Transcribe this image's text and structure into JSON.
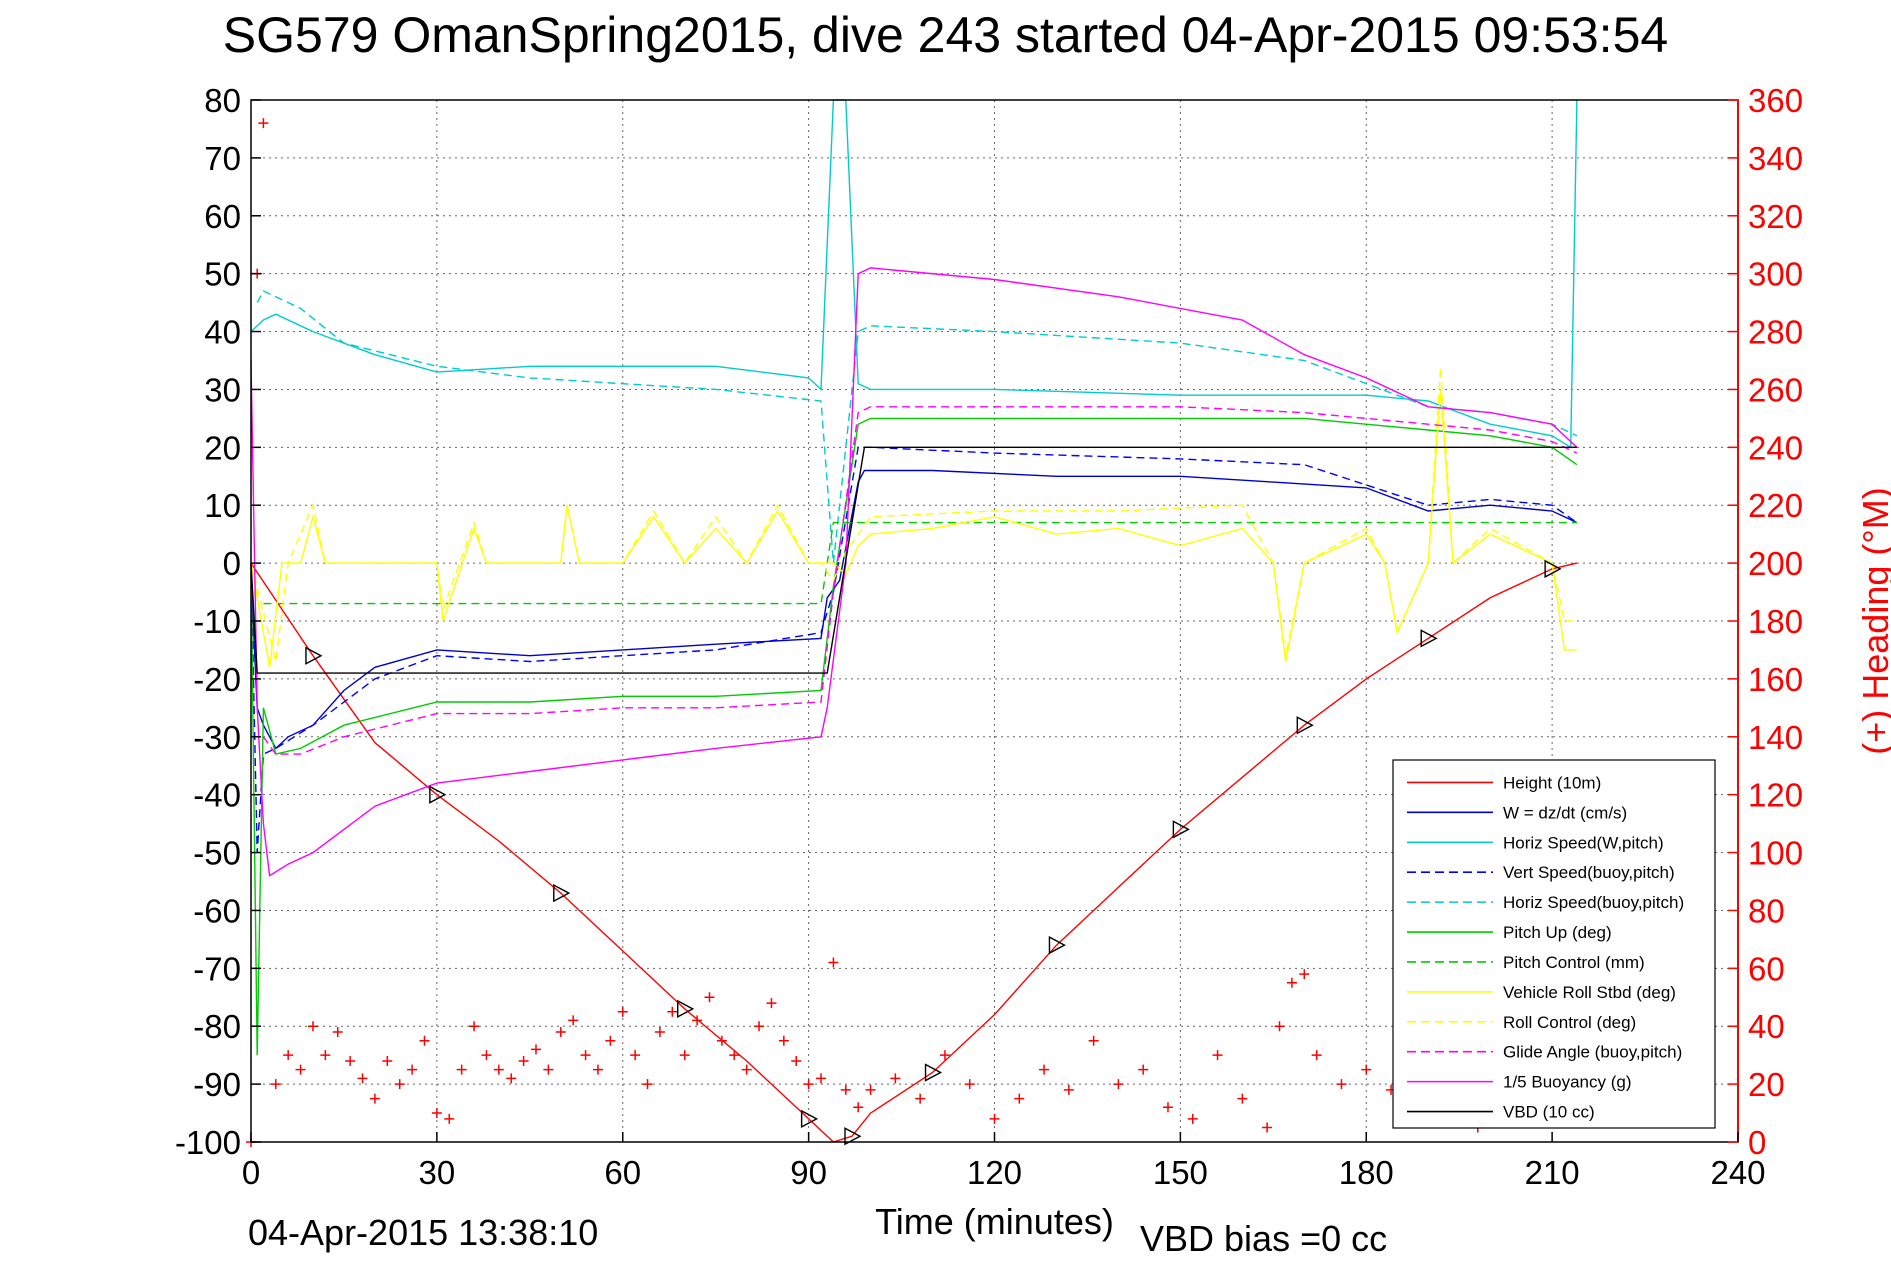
{
  "title": "SG579 OmanSpring2015, dive 243 started 04-Apr-2015 09:53:54",
  "footer_left": "04-Apr-2015 13:38:10",
  "footer_right": "VBD bias =0 cc",
  "chart_data": {
    "type": "line",
    "title": "SG579 OmanSpring2015, dive 243 started 04-Apr-2015 09:53:54",
    "xlabel": "Time (minutes)",
    "ylabel": "",
    "y2label": "(+) Heading (°M)",
    "xlim": [
      0,
      240
    ],
    "ylim": [
      -100,
      80
    ],
    "y2lim": [
      0,
      360
    ],
    "xticks": [
      0,
      30,
      60,
      90,
      120,
      150,
      180,
      210,
      240
    ],
    "yticks": [
      80,
      70,
      60,
      50,
      40,
      30,
      20,
      10,
      0,
      -10,
      -20,
      -30,
      -40,
      -50,
      -60,
      -70,
      -80,
      -90,
      -100
    ],
    "y2ticks": [
      360,
      340,
      320,
      300,
      280,
      260,
      240,
      220,
      200,
      180,
      160,
      140,
      120,
      100,
      80,
      60,
      40,
      20,
      0
    ],
    "grid": true,
    "legend_position": "bottom-right",
    "series": [
      {
        "name": "Height (10m)",
        "color": "#ff0000",
        "style": "solid",
        "x": [
          0,
          10,
          20,
          30,
          40,
          50,
          60,
          70,
          80,
          90,
          94,
          97,
          100,
          110,
          120,
          130,
          140,
          150,
          160,
          170,
          180,
          190,
          200,
          210,
          214
        ],
        "y": [
          0,
          -16,
          -31,
          -40,
          -48,
          -57,
          -67,
          -77,
          -86,
          -96,
          -100,
          -99,
          -95,
          -88,
          -78,
          -66,
          -56,
          -46,
          -37,
          -28,
          -20,
          -13,
          -6,
          -1,
          0
        ]
      },
      {
        "name": "W = dz/dt (cm/s)",
        "color": "#0000cc",
        "style": "solid",
        "x": [
          0,
          1,
          2,
          4,
          6,
          10,
          15,
          20,
          30,
          45,
          60,
          75,
          92,
          93,
          95,
          98,
          99,
          110,
          130,
          150,
          165,
          180,
          190,
          200,
          210,
          214
        ],
        "y": [
          -2,
          -25,
          -28,
          -32,
          -30,
          -28,
          -22,
          -18,
          -15,
          -16,
          -15,
          -14,
          -13,
          -6,
          -3,
          14,
          16,
          16,
          15,
          15,
          14,
          13,
          9,
          10,
          9,
          7
        ]
      },
      {
        "name": "Horiz Speed(W,pitch)",
        "color": "#00cccc",
        "style": "solid",
        "x": [
          0,
          2,
          4,
          10,
          20,
          30,
          45,
          60,
          75,
          90,
          92,
          94,
          96,
          98,
          100,
          120,
          150,
          180,
          190,
          200,
          210,
          213,
          214
        ],
        "y": [
          40,
          42,
          43,
          40,
          36,
          33,
          34,
          34,
          34,
          32,
          30,
          80,
          80,
          31,
          30,
          30,
          29,
          29,
          28,
          24,
          22,
          20,
          80
        ]
      },
      {
        "name": "Vert Speed(buoy,pitch)",
        "color": "#0000ff",
        "style": "dashed",
        "x": [
          0,
          1,
          2,
          4,
          10,
          20,
          30,
          45,
          60,
          75,
          92,
          94,
          98,
          100,
          120,
          150,
          170,
          190,
          200,
          210,
          214
        ],
        "y": [
          0,
          -50,
          -33,
          -32,
          -28,
          -20,
          -16,
          -17,
          -16,
          -15,
          -12,
          -5,
          20,
          20,
          19,
          18,
          17,
          10,
          11,
          10,
          7
        ]
      },
      {
        "name": "Horiz Speed(buoy,pitch)",
        "color": "#00cccc",
        "style": "dashed",
        "x": [
          1,
          2,
          8,
          15,
          30,
          45,
          60,
          75,
          92,
          94,
          98,
          100,
          120,
          150,
          170,
          190,
          200,
          210,
          214
        ],
        "y": [
          45,
          47,
          44,
          38,
          34,
          32,
          31,
          30,
          28,
          0,
          40,
          41,
          40,
          38,
          35,
          27,
          26,
          24,
          22
        ]
      },
      {
        "name": "Pitch Up (deg)",
        "color": "#00cc00",
        "style": "solid",
        "x": [
          0,
          1,
          2,
          4,
          8,
          15,
          30,
          45,
          60,
          75,
          92,
          94,
          98,
          100,
          120,
          150,
          170,
          190,
          200,
          210,
          214
        ],
        "y": [
          0,
          -85,
          -25,
          -33,
          -32,
          -28,
          -24,
          -24,
          -23,
          -23,
          -22,
          -4,
          24,
          25,
          25,
          25,
          25,
          23,
          22,
          20,
          17
        ]
      },
      {
        "name": "Pitch Control (mm)",
        "color": "#00cc00",
        "style": "dashed",
        "x": [
          2,
          92,
          94,
          214
        ],
        "y": [
          -7,
          -7,
          7,
          7
        ]
      },
      {
        "name": "Vehicle Roll Stbd (deg)",
        "color": "#ffff00",
        "style": "solid",
        "x": [
          0,
          3,
          5,
          8,
          10,
          12,
          14,
          30,
          31,
          36,
          38,
          50,
          51,
          53,
          60,
          65,
          70,
          75,
          80,
          85,
          90,
          92,
          94,
          96,
          98,
          100,
          110,
          120,
          130,
          140,
          150,
          160,
          165,
          167,
          170,
          180,
          183,
          185,
          190,
          192,
          194,
          200,
          210,
          212,
          214
        ],
        "y": [
          0,
          -18,
          0,
          0,
          8,
          0,
          0,
          0,
          -10,
          6,
          0,
          0,
          10,
          0,
          0,
          8,
          0,
          6,
          0,
          9,
          0,
          0,
          0,
          -2,
          3,
          5,
          6,
          8,
          5,
          6,
          3,
          6,
          0,
          -17,
          0,
          5,
          0,
          -12,
          0,
          30,
          0,
          5,
          0,
          -15,
          -15
        ]
      },
      {
        "name": "Roll Control (deg)",
        "color": "#ffff00",
        "style": "dashed",
        "x": [
          0,
          4,
          6,
          10,
          12,
          30,
          31,
          36,
          38,
          50,
          51,
          53,
          60,
          65,
          70,
          75,
          80,
          85,
          90,
          92,
          94,
          96,
          98,
          100,
          120,
          140,
          160,
          165,
          167,
          170,
          180,
          183,
          185,
          190,
          192,
          194,
          200,
          210,
          212,
          214
        ],
        "y": [
          0,
          -17,
          0,
          10,
          0,
          0,
          -8,
          7,
          0,
          0,
          10,
          0,
          0,
          9,
          0,
          8,
          0,
          10,
          0,
          0,
          -3,
          2,
          5,
          8,
          9,
          9,
          10,
          0,
          -16,
          0,
          6,
          0,
          -12,
          0,
          34,
          0,
          6,
          0,
          -10,
          -10
        ]
      },
      {
        "name": "Glide Angle (buoy,pitch)",
        "color": "#ff00ff",
        "style": "dashed",
        "x": [
          2,
          4,
          8,
          15,
          30,
          45,
          60,
          75,
          92,
          94,
          98,
          100,
          120,
          150,
          170,
          190,
          200,
          210,
          214
        ],
        "y": [
          -30,
          -33,
          -33,
          -30,
          -26,
          -26,
          -25,
          -25,
          -24,
          -5,
          26,
          27,
          27,
          27,
          26,
          24,
          23,
          21,
          19
        ]
      },
      {
        "name": "1/5 Buoyancy (g)",
        "color": "#ff00ff",
        "style": "solid",
        "x": [
          0,
          1,
          2,
          3,
          6,
          10,
          20,
          30,
          45,
          60,
          75,
          92,
          93,
          96,
          98,
          100,
          120,
          140,
          160,
          170,
          180,
          190,
          200,
          210,
          212,
          214
        ],
        "y": [
          35,
          -25,
          -45,
          -54,
          -52,
          -50,
          -42,
          -38,
          -36,
          -34,
          -32,
          -30,
          -25,
          0,
          50,
          51,
          49,
          46,
          42,
          36,
          32,
          27,
          26,
          24,
          22,
          20
        ]
      },
      {
        "name": "VBD (10 cc)",
        "color": "#000000",
        "style": "solid",
        "x": [
          0,
          1,
          2,
          93,
          99,
          100,
          210,
          213,
          214
        ],
        "y": [
          0,
          -19,
          -19,
          -19,
          20,
          20,
          20,
          20,
          20
        ]
      },
      {
        "name": "Heading (°M)",
        "color": "#ff0000",
        "style": "markers",
        "axis": "right",
        "x": [
          0,
          1,
          2,
          4,
          6,
          8,
          10,
          12,
          14,
          16,
          18,
          20,
          22,
          24,
          26,
          28,
          30,
          32,
          34,
          36,
          38,
          40,
          42,
          44,
          46,
          48,
          50,
          52,
          54,
          56,
          58,
          60,
          62,
          64,
          66,
          68,
          70,
          72,
          74,
          76,
          78,
          80,
          82,
          84,
          86,
          88,
          90,
          92,
          94,
          96,
          98,
          100,
          104,
          108,
          112,
          116,
          120,
          124,
          128,
          132,
          136,
          140,
          144,
          148,
          152,
          156,
          160,
          164,
          166,
          168,
          170,
          172,
          176,
          180,
          184,
          186,
          188,
          190,
          194,
          198,
          200,
          204,
          208,
          210,
          214
        ],
        "y": [
          0,
          300,
          352,
          20,
          30,
          25,
          40,
          30,
          38,
          28,
          22,
          15,
          28,
          20,
          25,
          35,
          10,
          8,
          25,
          40,
          30,
          25,
          22,
          28,
          32,
          25,
          38,
          42,
          30,
          25,
          35,
          45,
          30,
          20,
          38,
          45,
          30,
          42,
          50,
          35,
          30,
          25,
          40,
          48,
          35,
          28,
          20,
          22,
          62,
          18,
          12,
          18,
          22,
          15,
          30,
          20,
          8,
          15,
          25,
          18,
          35,
          20,
          25,
          12,
          8,
          30,
          15,
          5,
          40,
          55,
          58,
          30,
          20,
          25,
          18,
          35,
          28,
          40,
          20,
          5,
          10,
          25,
          15,
          30,
          35
        ]
      }
    ]
  }
}
